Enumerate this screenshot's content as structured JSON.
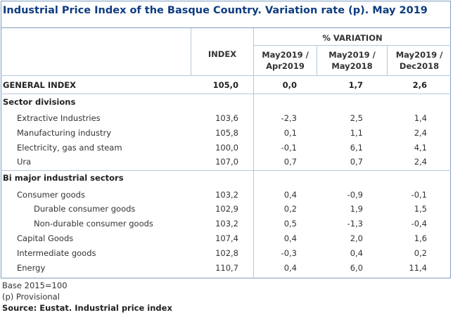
{
  "title": "Industrial Price Index of the Basque Country. Variation rate (p). May 2019",
  "header": {
    "index": "INDEX",
    "variation": "% VARIATION",
    "col2": [
      "May2019 /",
      "Apr2019"
    ],
    "col3": [
      "May2019 /",
      "May2018"
    ],
    "col4": [
      "May2019 /",
      "Dec2018"
    ]
  },
  "general": {
    "label": "GENERAL INDEX",
    "index": "105,0",
    "v1": "0,0",
    "v2": "1,7",
    "v3": "2,6"
  },
  "sections": {
    "sector": "Sector divisions",
    "major": "Bi major industrial sectors"
  },
  "rows": [
    {
      "label": "Extractive Industries",
      "index": "103,6",
      "v1": "-2,3",
      "v2": "2,5",
      "v3": "1,4"
    },
    {
      "label": "Manufacturing industry",
      "index": "105,8",
      "v1": "0,1",
      "v2": "1,1",
      "v3": "2,4"
    },
    {
      "label": "Electricity, gas and steam",
      "index": "100,0",
      "v1": "-0,1",
      "v2": "6,1",
      "v3": "4,1"
    },
    {
      "label": "Ura",
      "index": "107,0",
      "v1": "0,7",
      "v2": "0,7",
      "v3": "2,4"
    },
    {
      "label": "Consumer goods",
      "index": "103,2",
      "v1": "0,4",
      "v2": "-0,9",
      "v3": "-0,1"
    },
    {
      "label": "Durable consumer goods",
      "index": "102,9",
      "v1": "0,2",
      "v2": "1,9",
      "v3": "1,5"
    },
    {
      "label": "Non-durable consumer goods",
      "index": "103,2",
      "v1": "0,5",
      "v2": "-1,3",
      "v3": "-0,4"
    },
    {
      "label": "Capital Goods",
      "index": "107,4",
      "v1": "0,4",
      "v2": "2,0",
      "v3": "1,6"
    },
    {
      "label": "Intermediate goods",
      "index": "102,8",
      "v1": "-0,3",
      "v2": "0,4",
      "v3": "0,2"
    },
    {
      "label": "Energy",
      "index": "110,7",
      "v1": "0,4",
      "v2": "6,0",
      "v3": "11,4"
    }
  ],
  "footer": {
    "base": "Base 2015=100",
    "provisional": "(p) Provisional",
    "source": "Source: Eustat. Industrial price index"
  },
  "colors": {
    "title": "#0f3c80",
    "border": "#7f9dc0",
    "rule": "#b7c7db"
  }
}
